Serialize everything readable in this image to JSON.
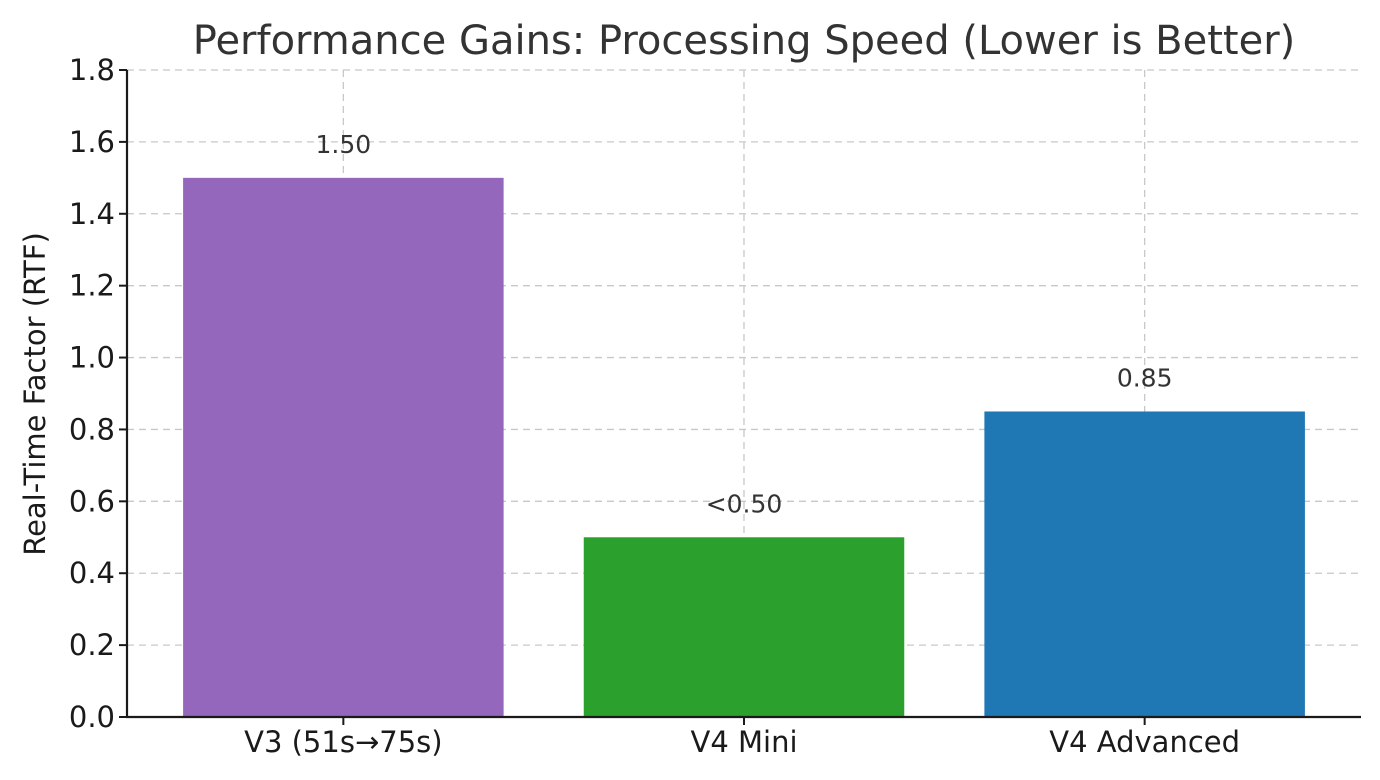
{
  "chart_data": {
    "type": "bar",
    "title": "Performance Gains: Processing Speed (Lower is Better)",
    "xlabel": "",
    "ylabel": "Real-Time Factor (RTF)",
    "ylim": [
      0,
      1.8
    ],
    "yticks": [
      "0.0",
      "0.2",
      "0.4",
      "0.6",
      "0.8",
      "1.0",
      "1.2",
      "1.4",
      "1.6",
      "1.8"
    ],
    "grid": true,
    "categories": [
      "V3 (51s→75s)",
      "V4 Mini",
      "V4 Advanced"
    ],
    "values": [
      1.5,
      0.5,
      0.85
    ],
    "value_labels": [
      "1.50",
      "<0.50",
      "0.85"
    ],
    "colors": [
      "#9467bd",
      "#2ca02c",
      "#1f77b4"
    ]
  }
}
